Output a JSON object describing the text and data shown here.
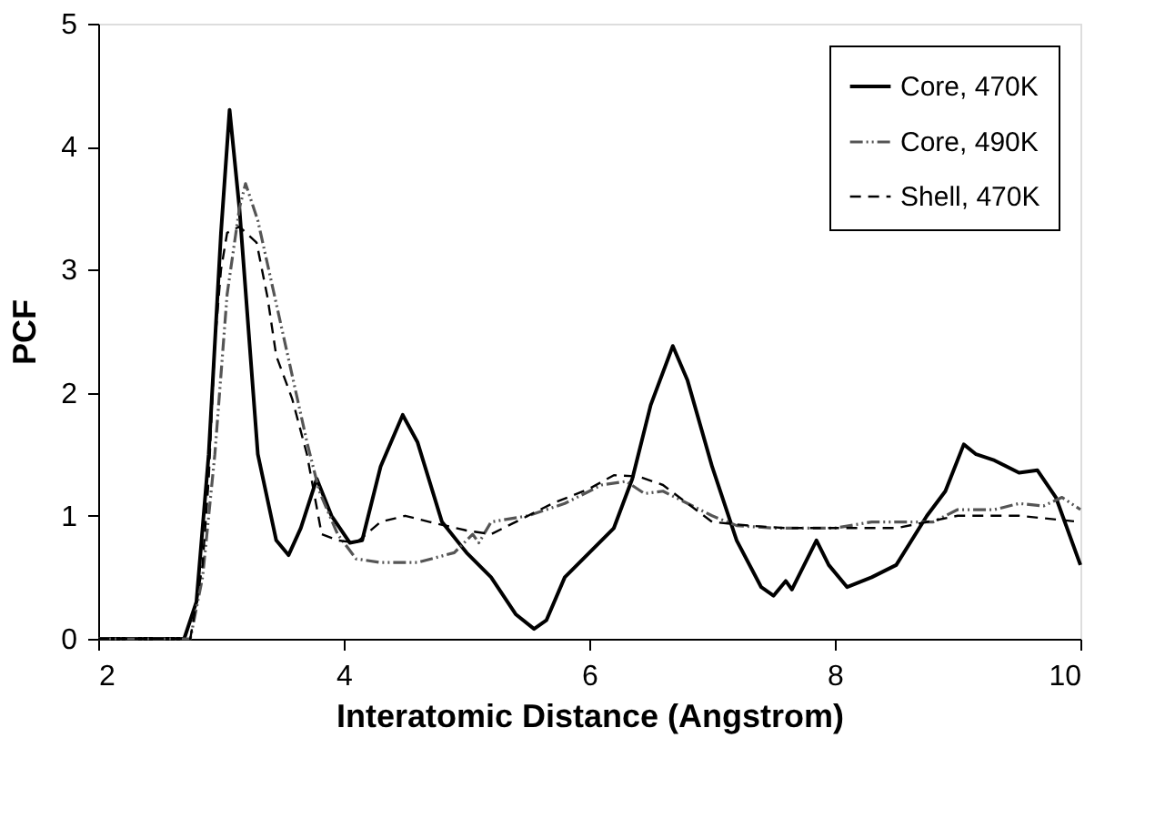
{
  "chart_data": {
    "type": "line",
    "xlabel": "Interatomic Distance (Angstrom)",
    "ylabel": "PCF",
    "xlim": [
      2,
      10
    ],
    "ylim": [
      0,
      5
    ],
    "xticks": [
      2,
      4,
      6,
      8,
      10
    ],
    "yticks": [
      0,
      1,
      2,
      3,
      4,
      5
    ],
    "grid": false,
    "legend": "top right",
    "marker": "none",
    "series": [
      {
        "name": "Core, 470K",
        "color": "#000000",
        "line_style": "solid",
        "x": [
          2,
          2.7,
          2.8,
          2.9,
          3.0,
          3.07,
          3.15,
          3.3,
          3.45,
          3.55,
          3.65,
          3.78,
          3.9,
          4.05,
          4.15,
          4.3,
          4.48,
          4.6,
          4.8,
          5.0,
          5.2,
          5.4,
          5.55,
          5.65,
          5.8,
          6.0,
          6.2,
          6.35,
          6.5,
          6.68,
          6.8,
          7.0,
          7.2,
          7.4,
          7.5,
          7.6,
          7.65,
          7.75,
          7.85,
          7.95,
          8.1,
          8.3,
          8.5,
          8.75,
          8.9,
          9.05,
          9.15,
          9.3,
          9.5,
          9.65,
          9.8,
          10.0
        ],
        "values": [
          0,
          0,
          0.3,
          1.5,
          3.3,
          4.3,
          3.5,
          1.5,
          0.8,
          0.68,
          0.9,
          1.3,
          1.0,
          0.78,
          0.8,
          1.4,
          1.82,
          1.6,
          0.95,
          0.7,
          0.5,
          0.2,
          0.08,
          0.15,
          0.5,
          0.7,
          0.9,
          1.3,
          1.9,
          2.38,
          2.1,
          1.4,
          0.8,
          0.42,
          0.35,
          0.47,
          0.4,
          0.6,
          0.8,
          0.6,
          0.42,
          0.5,
          0.6,
          1.0,
          1.2,
          1.58,
          1.5,
          1.45,
          1.35,
          1.37,
          1.15,
          0.6
        ]
      },
      {
        "name": "Core, 490K",
        "color": "#555555",
        "line_style": "dashdot",
        "x": [
          2,
          2.75,
          2.85,
          2.95,
          3.05,
          3.15,
          3.2,
          3.3,
          3.5,
          3.7,
          3.8,
          3.95,
          4.1,
          4.3,
          4.6,
          4.9,
          5.05,
          5.1,
          5.2,
          5.5,
          5.8,
          6.1,
          6.3,
          6.45,
          6.6,
          6.8,
          7.0,
          7.2,
          7.5,
          8.0,
          8.3,
          8.8,
          9.0,
          9.3,
          9.5,
          9.7,
          9.85,
          10.0
        ],
        "values": [
          0,
          0,
          0.5,
          1.5,
          2.8,
          3.5,
          3.7,
          3.4,
          2.5,
          1.6,
          1.2,
          0.85,
          0.65,
          0.62,
          0.62,
          0.7,
          0.85,
          0.78,
          0.95,
          1.0,
          1.1,
          1.25,
          1.28,
          1.18,
          1.2,
          1.1,
          1.0,
          0.92,
          0.9,
          0.9,
          0.95,
          0.95,
          1.05,
          1.05,
          1.1,
          1.08,
          1.15,
          1.05
        ]
      },
      {
        "name": "Shell, 470K",
        "color": "#000000",
        "line_style": "dashed",
        "x": [
          2,
          2.75,
          2.85,
          2.9,
          2.95,
          3.0,
          3.05,
          3.15,
          3.29,
          3.38,
          3.45,
          3.58,
          3.7,
          3.82,
          3.95,
          4.1,
          4.3,
          4.5,
          4.7,
          5.0,
          5.2,
          5.4,
          5.7,
          6.0,
          6.2,
          6.4,
          6.6,
          6.8,
          7.0,
          7.3,
          7.6,
          8.0,
          8.5,
          9.0,
          9.5,
          10.0
        ],
        "values": [
          0,
          0,
          0.6,
          1.3,
          2.4,
          3.0,
          3.3,
          3.35,
          3.22,
          2.77,
          2.3,
          1.95,
          1.5,
          0.85,
          0.8,
          0.78,
          0.95,
          1.0,
          0.95,
          0.88,
          0.85,
          0.95,
          1.1,
          1.22,
          1.33,
          1.32,
          1.25,
          1.1,
          0.95,
          0.92,
          0.9,
          0.9,
          0.9,
          1.0,
          1.0,
          0.95
        ]
      }
    ]
  }
}
